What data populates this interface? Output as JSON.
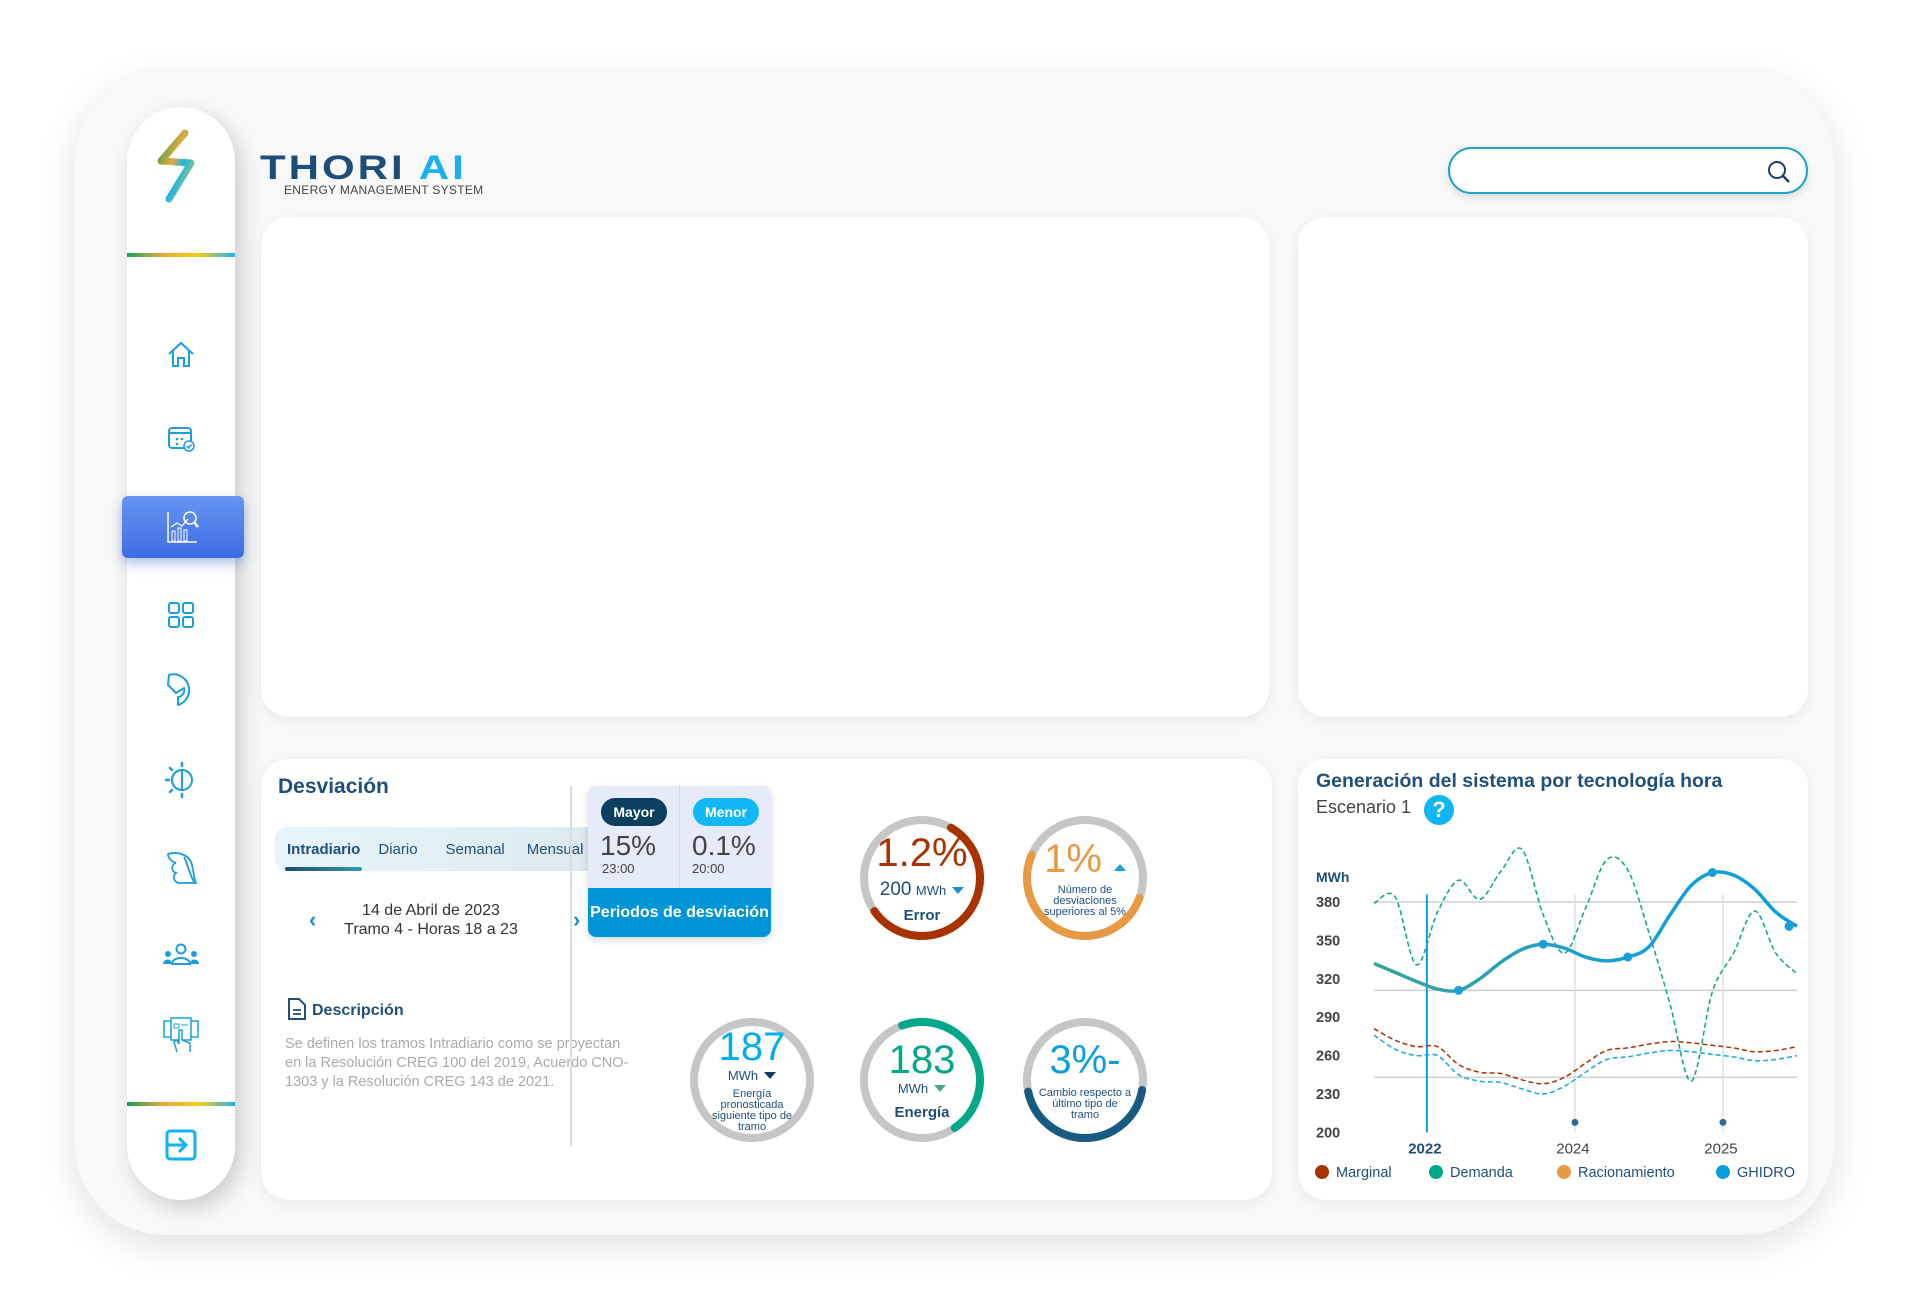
{
  "brand": {
    "name_part1": "THORI ",
    "name_part2": "AI",
    "tagline": "ENERGY MANAGEMENT SYSTEM"
  },
  "search": {
    "value": "",
    "placeholder": ""
  },
  "sidebar": {
    "items": [
      {
        "icon": "home-icon"
      },
      {
        "icon": "calendar-check-icon"
      },
      {
        "icon": "analytics-search-icon",
        "active": true
      },
      {
        "icon": "grid-icon"
      },
      {
        "icon": "refresh-arrow-icon"
      },
      {
        "icon": "sun-brightness-icon"
      },
      {
        "icon": "leaf-icon"
      },
      {
        "icon": "users-icon"
      },
      {
        "icon": "touch-screen-icon"
      }
    ],
    "logout_icon": "logout-icon"
  },
  "desviacion": {
    "title": "Desviación",
    "tabs": [
      {
        "label": "Intradiario",
        "active": true
      },
      {
        "label": "Diario"
      },
      {
        "label": "Semanal"
      },
      {
        "label": "Mensual"
      }
    ],
    "date_line1": "14 de Abril de 2023",
    "date_line2": "Tramo 4 - Horas 18 a 23",
    "prev": "‹",
    "next": "›",
    "description_title": "Descripción",
    "description_text": "Se definen los tramos Intradiario como se proyectan en la Resolución CREG 100 del 2019, Acuerdo CNO-1303 y la Resolución CREG 143 de 2021.",
    "card": {
      "mayor_label": "Mayor",
      "mayor_value": "15%",
      "mayor_time": "23:00",
      "menor_label": "Menor",
      "menor_value": "0.1%",
      "menor_time": "20:00",
      "button": "Periodos de desviación"
    },
    "gauges": {
      "error": {
        "value": "1.2%",
        "sub_value": "200",
        "unit": "MWh",
        "label": "Error",
        "fill": 0.57,
        "color": "#a83300"
      },
      "desviaciones": {
        "value": "1%",
        "label": "Número de desviaciones superiores al 5%",
        "fill": 0.51,
        "color": "#e89a42"
      },
      "pronosticada": {
        "value": "187",
        "unit": "MWh",
        "label": "Energía pronosticada siguiente tipo de tramo",
        "fill": 0,
        "color": "#00aeef"
      },
      "energia": {
        "value": "183",
        "unit": "MWh",
        "label": "Energía",
        "fill": 0.46,
        "color": "#00a88a"
      },
      "cambio": {
        "value": "3%-",
        "label": "Cambio respecto a último tipo de tramo",
        "fill": 0.44,
        "color": "#175b80"
      }
    }
  },
  "chart_data": {
    "type": "line",
    "title": "Generación del sistema por tecnología hora",
    "subtitle": "Escenario 1",
    "ylabel": "MWh",
    "ylim": [
      200,
      400
    ],
    "yticks": [
      380,
      350,
      320,
      290,
      260,
      230,
      200
    ],
    "x": [
      0,
      1,
      2,
      3,
      4,
      5,
      6,
      7,
      8,
      9,
      10,
      11,
      12,
      13,
      14,
      15,
      16,
      17,
      18,
      19,
      20
    ],
    "xticks": [
      {
        "label": "2022",
        "at": 2.5,
        "highlight": true
      },
      {
        "label": "2024",
        "at": 9.5
      },
      {
        "label": "2025",
        "at": 16.5
      }
    ],
    "grid": true,
    "legend": [
      {
        "name": "Marginal",
        "color": "#a83300"
      },
      {
        "name": "Demanda",
        "color": "#00a88a"
      },
      {
        "name": "Racionamiento",
        "color": "#e89a42"
      },
      {
        "name": "GHIDRO",
        "color": "#0a9ede"
      }
    ],
    "legend_position": "bottom",
    "series": [
      {
        "name": "GHIDRO",
        "style": "solid",
        "color": "#0a9ede",
        "values": [
          332,
          325,
          318,
          312,
          311,
          320,
          333,
          343,
          347,
          344,
          337,
          334,
          337,
          345,
          370,
          393,
          403,
          401,
          390,
          372,
          361
        ]
      },
      {
        "name": "Demanda",
        "style": "dashed",
        "color": "#00a88a",
        "values": [
          379,
          384,
          331,
          372,
          397,
          382,
          404,
          421,
          370,
          340,
          375,
          413,
          405,
          356,
          300,
          240,
          310,
          340,
          373,
          340,
          324
        ]
      },
      {
        "name": "Marginal",
        "style": "dashed",
        "color": "#a83300",
        "values": [
          281,
          272,
          267,
          267,
          253,
          247,
          246,
          241,
          238,
          243,
          254,
          264,
          266,
          269,
          271,
          270,
          268,
          266,
          263,
          264,
          267
        ]
      },
      {
        "style": "dashed",
        "color": "#1aa6e6",
        "values": [
          276,
          265,
          260,
          260,
          245,
          240,
          239,
          234,
          230,
          236,
          247,
          257,
          259,
          262,
          264,
          263,
          261,
          259,
          256,
          257,
          260
        ]
      }
    ]
  }
}
